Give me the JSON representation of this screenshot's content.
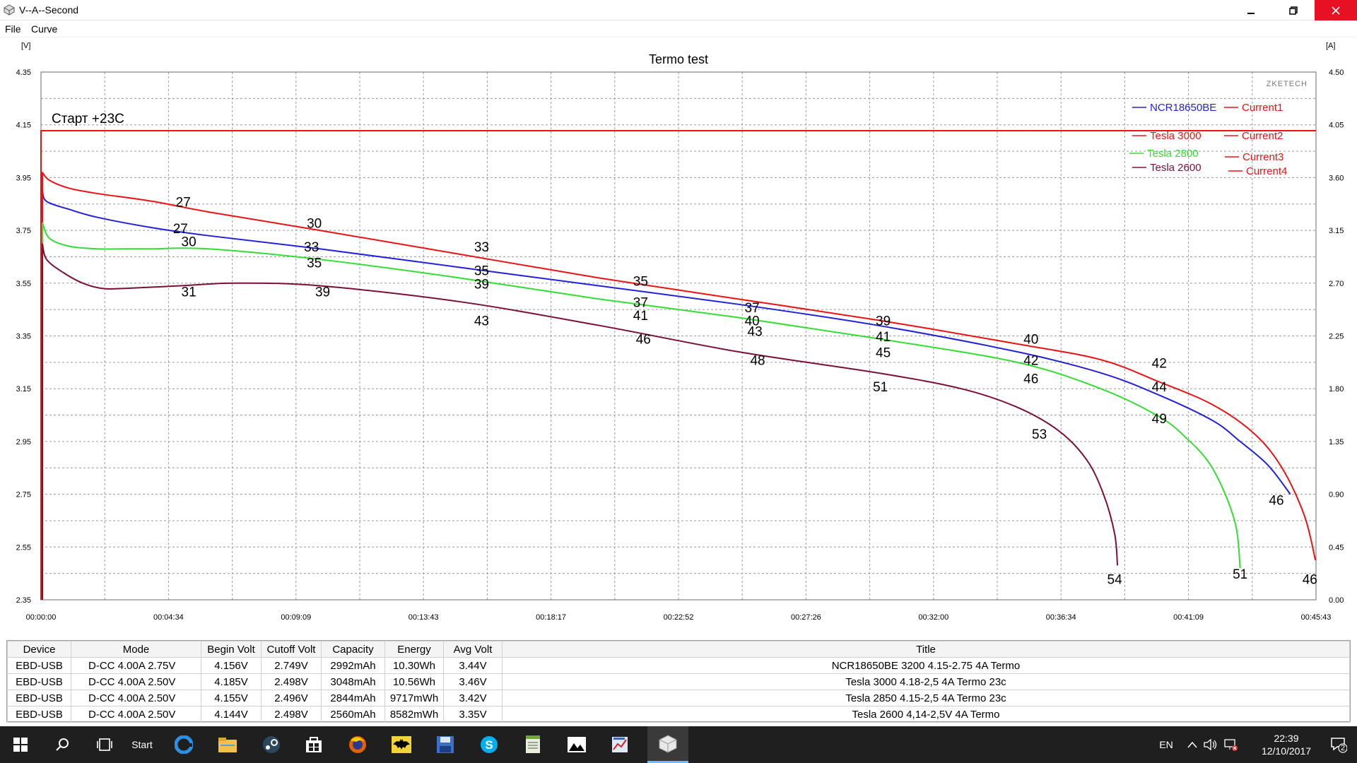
{
  "window": {
    "title": "V--A--Second",
    "menu": [
      "File",
      "Curve"
    ]
  },
  "chart_data": {
    "type": "line",
    "title": "Termo test",
    "watermark": "ZKETECH",
    "annotation": "Старт +23C",
    "left_unit": "[V]",
    "right_unit": "[A]",
    "y_left_ticks": [
      "4.35",
      "4.15",
      "3.95",
      "3.75",
      "3.55",
      "3.35",
      "3.15",
      "2.95",
      "2.75",
      "2.55",
      "2.35"
    ],
    "y_right_ticks": [
      "4.50",
      "4.05",
      "3.60",
      "3.15",
      "2.70",
      "2.25",
      "1.80",
      "1.35",
      "0.90",
      "0.45",
      "0.00"
    ],
    "x_ticks": [
      "00:00:00",
      "00:04:34",
      "00:09:09",
      "00:13:43",
      "00:18:17",
      "00:22:52",
      "00:27:26",
      "00:32:00",
      "00:36:34",
      "00:41:09",
      "00:45:43"
    ],
    "ylim": [
      2.35,
      4.35
    ],
    "ylim_right": [
      0,
      4.5
    ],
    "xlim_minutes": [
      0,
      45.72
    ],
    "legend": [
      {
        "name": "NCR18650BE",
        "color": "#2222dd"
      },
      {
        "name": "Current1",
        "color": "#ee1111"
      },
      {
        "name": "Tesla 3000",
        "color": "#ee1111"
      },
      {
        "name": "Current2",
        "color": "#ee1111"
      },
      {
        "name": "Tesla 2800",
        "color": "#33dd33"
      },
      {
        "name": "Current3",
        "color": "#ee1111"
      },
      {
        "name": "Tesla 2600",
        "color": "#7a1038"
      },
      {
        "name": "Current4",
        "color": "#ee1111"
      }
    ],
    "current_series": {
      "name": "Current",
      "color": "#ee1111",
      "value_A": 4.0,
      "start_min": 0.05,
      "end_min": 45.72
    },
    "series": [
      {
        "name": "NCR18650BE",
        "color": "#2222dd",
        "points": [
          [
            0.05,
            3.9
          ],
          [
            0.2,
            3.86
          ],
          [
            1,
            3.83
          ],
          [
            2,
            3.8
          ],
          [
            4,
            3.76
          ],
          [
            6,
            3.73
          ],
          [
            10,
            3.68
          ],
          [
            15,
            3.61
          ],
          [
            20,
            3.54
          ],
          [
            25,
            3.47
          ],
          [
            30,
            3.39
          ],
          [
            35,
            3.29
          ],
          [
            38,
            3.21
          ],
          [
            40,
            3.13
          ],
          [
            42,
            3.03
          ],
          [
            43,
            2.95
          ],
          [
            44,
            2.86
          ],
          [
            44.8,
            2.75
          ]
        ],
        "labels": [
          {
            "t": 5.0,
            "v": 3.74,
            "text": "27"
          },
          {
            "t": 9.7,
            "v": 3.67,
            "text": "33"
          },
          {
            "t": 15.8,
            "v": 3.58,
            "text": "35"
          },
          {
            "t": 21.5,
            "v": 3.46,
            "text": "37"
          },
          {
            "t": 25.5,
            "v": 3.39,
            "text": "40"
          },
          {
            "t": 30.2,
            "v": 3.33,
            "text": "41"
          },
          {
            "t": 35.5,
            "v": 3.24,
            "text": "42"
          },
          {
            "t": 40.1,
            "v": 3.14,
            "text": "44"
          },
          {
            "t": 44.3,
            "v": 2.71,
            "text": "46"
          }
        ]
      },
      {
        "name": "Tesla 3000",
        "color": "#ee1111",
        "points": [
          [
            0.05,
            3.97
          ],
          [
            0.3,
            3.94
          ],
          [
            1,
            3.91
          ],
          [
            2,
            3.89
          ],
          [
            4,
            3.86
          ],
          [
            6,
            3.82
          ],
          [
            10,
            3.75
          ],
          [
            15,
            3.66
          ],
          [
            20,
            3.57
          ],
          [
            25,
            3.49
          ],
          [
            30,
            3.41
          ],
          [
            35,
            3.32
          ],
          [
            38,
            3.26
          ],
          [
            40,
            3.18
          ],
          [
            42,
            3.09
          ],
          [
            43.5,
            2.98
          ],
          [
            44.5,
            2.85
          ],
          [
            45.3,
            2.67
          ],
          [
            45.7,
            2.5
          ]
        ],
        "labels": [
          {
            "t": 5.1,
            "v": 3.84,
            "text": "27"
          },
          {
            "t": 9.8,
            "v": 3.76,
            "text": "30"
          },
          {
            "t": 15.8,
            "v": 3.67,
            "text": "33"
          },
          {
            "t": 21.5,
            "v": 3.54,
            "text": "35"
          },
          {
            "t": 25.5,
            "v": 3.44,
            "text": "37"
          },
          {
            "t": 30.2,
            "v": 3.39,
            "text": "39"
          },
          {
            "t": 35.5,
            "v": 3.32,
            "text": "40"
          },
          {
            "t": 40.1,
            "v": 3.23,
            "text": "42"
          },
          {
            "t": 45.5,
            "v": 2.41,
            "text": "46"
          }
        ]
      },
      {
        "name": "Tesla 2800",
        "color": "#33dd33",
        "points": [
          [
            0.05,
            3.78
          ],
          [
            0.3,
            3.72
          ],
          [
            1,
            3.69
          ],
          [
            2,
            3.68
          ],
          [
            3,
            3.68
          ],
          [
            4,
            3.68
          ],
          [
            6,
            3.68
          ],
          [
            10,
            3.64
          ],
          [
            15,
            3.57
          ],
          [
            20,
            3.49
          ],
          [
            25,
            3.42
          ],
          [
            30,
            3.34
          ],
          [
            35,
            3.25
          ],
          [
            38,
            3.15
          ],
          [
            40,
            3.05
          ],
          [
            41,
            2.97
          ],
          [
            42,
            2.85
          ],
          [
            42.8,
            2.65
          ],
          [
            43,
            2.47
          ]
        ],
        "labels": [
          {
            "t": 5.3,
            "v": 3.69,
            "text": "30"
          },
          {
            "t": 9.8,
            "v": 3.61,
            "text": "35"
          },
          {
            "t": 15.8,
            "v": 3.53,
            "text": "39"
          },
          {
            "t": 21.5,
            "v": 3.41,
            "text": "41"
          },
          {
            "t": 25.6,
            "v": 3.35,
            "text": "43"
          },
          {
            "t": 30.2,
            "v": 3.27,
            "text": "45"
          },
          {
            "t": 35.5,
            "v": 3.17,
            "text": "46"
          },
          {
            "t": 40.1,
            "v": 3.02,
            "text": "49"
          },
          {
            "t": 43.0,
            "v": 2.43,
            "text": "51"
          }
        ]
      },
      {
        "name": "Tesla 2600",
        "color": "#7a1038",
        "points": [
          [
            0.05,
            3.7
          ],
          [
            0.2,
            3.64
          ],
          [
            0.8,
            3.59
          ],
          [
            1.5,
            3.55
          ],
          [
            2.2,
            3.53
          ],
          [
            3,
            3.53
          ],
          [
            5,
            3.54
          ],
          [
            7,
            3.55
          ],
          [
            10,
            3.54
          ],
          [
            15,
            3.48
          ],
          [
            20,
            3.39
          ],
          [
            25,
            3.29
          ],
          [
            30,
            3.21
          ],
          [
            33,
            3.15
          ],
          [
            35,
            3.08
          ],
          [
            36.5,
            2.99
          ],
          [
            37.5,
            2.88
          ],
          [
            38.1,
            2.75
          ],
          [
            38.5,
            2.6
          ],
          [
            38.6,
            2.48
          ]
        ],
        "labels": [
          {
            "t": 5.3,
            "v": 3.5,
            "text": "31"
          },
          {
            "t": 10.1,
            "v": 3.5,
            "text": "39"
          },
          {
            "t": 15.8,
            "v": 3.39,
            "text": "43"
          },
          {
            "t": 21.6,
            "v": 3.32,
            "text": "46"
          },
          {
            "t": 25.7,
            "v": 3.24,
            "text": "48"
          },
          {
            "t": 30.1,
            "v": 3.14,
            "text": "51"
          },
          {
            "t": 35.8,
            "v": 2.96,
            "text": "53"
          },
          {
            "t": 38.5,
            "v": 2.41,
            "text": "54"
          }
        ]
      }
    ]
  },
  "table": {
    "columns": [
      "Device",
      "Mode",
      "Begin Volt",
      "Cutoff Volt",
      "Capacity",
      "Energy",
      "Avg Volt",
      "Title"
    ],
    "rows": [
      [
        "EBD-USB",
        "D-CC  4.00A  2.75V",
        "4.156V",
        "2.749V",
        "2992mAh",
        "10.30Wh",
        "3.44V",
        "NCR18650BE 3200 4.15-2.75 4A Termo"
      ],
      [
        "EBD-USB",
        "D-CC  4.00A  2.50V",
        "4.185V",
        "2.498V",
        "3048mAh",
        "10.56Wh",
        "3.46V",
        "Tesla 3000 4.18-2,5 4A Termo 23c"
      ],
      [
        "EBD-USB",
        "D-CC  4.00A  2.50V",
        "4.155V",
        "2.496V",
        "2844mAh",
        "9717mWh",
        "3.42V",
        "Tesla 2850 4.15-2,5 4A Termo 23c"
      ],
      [
        "EBD-USB",
        "D-CC  4.00A  2.50V",
        "4.144V",
        "2.498V",
        "2560mAh",
        "8582mWh",
        "3.35V",
        "Tesla 2600 4,14-2,5V 4A Termo"
      ]
    ]
  },
  "taskbar": {
    "start_label": "Start",
    "language": "EN",
    "time": "22:39",
    "date": "12/10/2017",
    "notification_count": "2",
    "icons": [
      "windows-icon",
      "search-icon",
      "task-view-icon",
      "edge-icon",
      "file-explorer-icon",
      "steam-icon",
      "store-icon",
      "firefox-icon",
      "batman-app-icon",
      "save-app-icon",
      "skype-icon",
      "notepad-app-icon",
      "photos-icon",
      "paint-app-icon",
      "battery-tester-app-icon"
    ]
  }
}
